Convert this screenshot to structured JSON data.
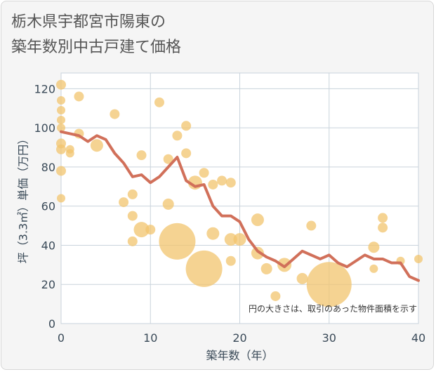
{
  "title": {
    "line1": "栃木県宇都宮市陽東の",
    "line2": "築年数別中古戸建て価格"
  },
  "note": "円の大きさは、取引のあった物件面積を示す",
  "colors": {
    "bubble": "#f2c46e",
    "line": "#d1705a",
    "grid": "#c9d3dc",
    "plot_bg": "#ffffff"
  },
  "chart_data": {
    "type": "scatter",
    "xlabel": "築年数（年）",
    "ylabel": "坪（3.3㎡）単価（万円）",
    "xlim": [
      0,
      40
    ],
    "ylim": [
      0,
      128
    ],
    "x_ticks": [
      0,
      10,
      20,
      30,
      40
    ],
    "y_ticks": [
      0,
      20,
      40,
      60,
      80,
      100,
      120
    ],
    "grid": true,
    "series": [
      {
        "type": "scatter",
        "points": [
          {
            "x": 0,
            "y": 122,
            "r": 7
          },
          {
            "x": 0,
            "y": 114,
            "r": 6
          },
          {
            "x": 0,
            "y": 109,
            "r": 6
          },
          {
            "x": 0,
            "y": 104,
            "r": 6
          },
          {
            "x": 0,
            "y": 100,
            "r": 6
          },
          {
            "x": 0,
            "y": 92,
            "r": 7
          },
          {
            "x": 0,
            "y": 89,
            "r": 7
          },
          {
            "x": 0,
            "y": 78,
            "r": 7
          },
          {
            "x": 0,
            "y": 64,
            "r": 6
          },
          {
            "x": 1,
            "y": 89,
            "r": 6
          },
          {
            "x": 1,
            "y": 87,
            "r": 6
          },
          {
            "x": 2,
            "y": 116,
            "r": 7
          },
          {
            "x": 2,
            "y": 97,
            "r": 7
          },
          {
            "x": 4,
            "y": 91,
            "r": 9
          },
          {
            "x": 6,
            "y": 107,
            "r": 7
          },
          {
            "x": 7,
            "y": 62,
            "r": 7
          },
          {
            "x": 8,
            "y": 66,
            "r": 7
          },
          {
            "x": 8,
            "y": 55,
            "r": 7
          },
          {
            "x": 8,
            "y": 42,
            "r": 7
          },
          {
            "x": 9,
            "y": 86,
            "r": 7
          },
          {
            "x": 9,
            "y": 48,
            "r": 11
          },
          {
            "x": 10,
            "y": 48,
            "r": 7
          },
          {
            "x": 11,
            "y": 113,
            "r": 7
          },
          {
            "x": 12,
            "y": 84,
            "r": 7
          },
          {
            "x": 12,
            "y": 61,
            "r": 8
          },
          {
            "x": 13,
            "y": 96,
            "r": 7
          },
          {
            "x": 13,
            "y": 42,
            "r": 26
          },
          {
            "x": 14,
            "y": 101,
            "r": 7
          },
          {
            "x": 14,
            "y": 87,
            "r": 7
          },
          {
            "x": 15,
            "y": 72,
            "r": 10
          },
          {
            "x": 16,
            "y": 77,
            "r": 7
          },
          {
            "x": 16,
            "y": 28,
            "r": 26
          },
          {
            "x": 17,
            "y": 71,
            "r": 7
          },
          {
            "x": 17,
            "y": 46,
            "r": 9
          },
          {
            "x": 18,
            "y": 73,
            "r": 7
          },
          {
            "x": 19,
            "y": 72,
            "r": 7
          },
          {
            "x": 19,
            "y": 43,
            "r": 9
          },
          {
            "x": 19,
            "y": 32,
            "r": 7
          },
          {
            "x": 20,
            "y": 43,
            "r": 9
          },
          {
            "x": 22,
            "y": 53,
            "r": 9
          },
          {
            "x": 22,
            "y": 36,
            "r": 9
          },
          {
            "x": 23,
            "y": 28,
            "r": 8
          },
          {
            "x": 24,
            "y": 14,
            "r": 7
          },
          {
            "x": 25,
            "y": 30,
            "r": 10
          },
          {
            "x": 27,
            "y": 23,
            "r": 8
          },
          {
            "x": 28,
            "y": 50,
            "r": 7
          },
          {
            "x": 30,
            "y": 20,
            "r": 32
          },
          {
            "x": 35,
            "y": 39,
            "r": 8
          },
          {
            "x": 35,
            "y": 28,
            "r": 6
          },
          {
            "x": 36,
            "y": 54,
            "r": 7
          },
          {
            "x": 36,
            "y": 49,
            "r": 7
          },
          {
            "x": 38,
            "y": 32,
            "r": 6
          },
          {
            "x": 40,
            "y": 33,
            "r": 6
          }
        ]
      },
      {
        "type": "line",
        "x": [
          0,
          1,
          2,
          3,
          4,
          5,
          6,
          7,
          8,
          9,
          10,
          11,
          12,
          13,
          14,
          15,
          16,
          17,
          18,
          19,
          20,
          21,
          22,
          23,
          24,
          25,
          26,
          27,
          28,
          29,
          30,
          31,
          32,
          33,
          34,
          35,
          36,
          37,
          38,
          39,
          40
        ],
        "y": [
          98,
          97,
          96,
          93,
          96,
          94,
          87,
          82,
          75,
          76,
          72,
          75,
          80,
          85,
          73,
          70,
          71,
          60,
          55,
          55,
          52,
          43,
          37,
          34,
          32,
          29,
          33,
          37,
          35,
          33,
          35,
          31,
          29,
          32,
          35,
          33,
          33,
          31,
          31,
          24,
          22
        ]
      }
    ]
  }
}
